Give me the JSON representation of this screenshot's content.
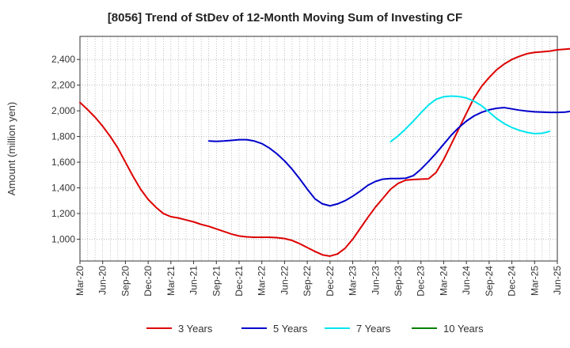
{
  "chart_data": {
    "type": "line",
    "title": "[8056]  Trend of StDev of 12-Month Moving Sum of Investing CF",
    "xlabel": "",
    "ylabel": "Amount (million yen)",
    "ylim": [
      830,
      2580
    ],
    "yticks": [
      1000,
      1200,
      1400,
      1600,
      1800,
      2000,
      2200,
      2400
    ],
    "ytick_labels": [
      "1,000",
      "1,200",
      "1,400",
      "1,600",
      "1,800",
      "2,000",
      "2,200",
      "2,400"
    ],
    "x_start": "2020-03",
    "x_end": "2025-06",
    "xtick_labels": [
      "Mar-20",
      "Jun-20",
      "Sep-20",
      "Dec-20",
      "Mar-21",
      "Jun-21",
      "Sep-21",
      "Dec-21",
      "Mar-22",
      "Jun-22",
      "Sep-22",
      "Dec-22",
      "Mar-23",
      "Jun-23",
      "Sep-23",
      "Dec-23",
      "Mar-24",
      "Jun-24",
      "Sep-24",
      "Dec-24",
      "Mar-25",
      "Jun-25"
    ],
    "grid": true,
    "legend_position": "bottom",
    "series": [
      {
        "name": "3 Years",
        "color": "#dd0000",
        "start": "2020-03",
        "values": [
          2065,
          2010,
          1950,
          1880,
          1800,
          1710,
          1600,
          1490,
          1390,
          1310,
          1250,
          1200,
          1175,
          1165,
          1150,
          1135,
          1115,
          1100,
          1080,
          1060,
          1040,
          1025,
          1018,
          1015,
          1015,
          1015,
          1012,
          1005,
          990,
          965,
          935,
          905,
          878,
          868,
          885,
          930,
          1000,
          1085,
          1170,
          1250,
          1320,
          1390,
          1435,
          1460,
          1465,
          1468,
          1470,
          1520,
          1620,
          1740,
          1860,
          1980,
          2100,
          2190,
          2260,
          2320,
          2365,
          2400,
          2425,
          2445,
          2455,
          2460,
          2465,
          2475,
          2480,
          2485,
          2485,
          2485,
          2490,
          2510,
          2540
        ]
      },
      {
        "name": "5 Years",
        "color": "#0000cc",
        "start": "2021-08",
        "values": [
          1765,
          1762,
          1765,
          1770,
          1775,
          1775,
          1765,
          1745,
          1710,
          1665,
          1610,
          1545,
          1470,
          1390,
          1315,
          1275,
          1260,
          1275,
          1300,
          1335,
          1375,
          1420,
          1450,
          1468,
          1472,
          1472,
          1475,
          1495,
          1545,
          1605,
          1670,
          1740,
          1810,
          1870,
          1920,
          1960,
          1988,
          2008,
          2020,
          2025,
          2015,
          2005,
          1998,
          1992,
          1990,
          1988,
          1988,
          1990,
          1998,
          2010,
          2035
        ]
      },
      {
        "name": "7 Years",
        "color": "#00e5ee",
        "start": "2023-08",
        "values": [
          1760,
          1805,
          1860,
          1920,
          1985,
          2045,
          2090,
          2110,
          2115,
          2112,
          2100,
          2075,
          2040,
          1990,
          1940,
          1900,
          1870,
          1848,
          1832,
          1822,
          1825,
          1840
        ]
      },
      {
        "name": "10 Years",
        "color": "#008000",
        "start": "2025-03",
        "values": []
      }
    ]
  }
}
